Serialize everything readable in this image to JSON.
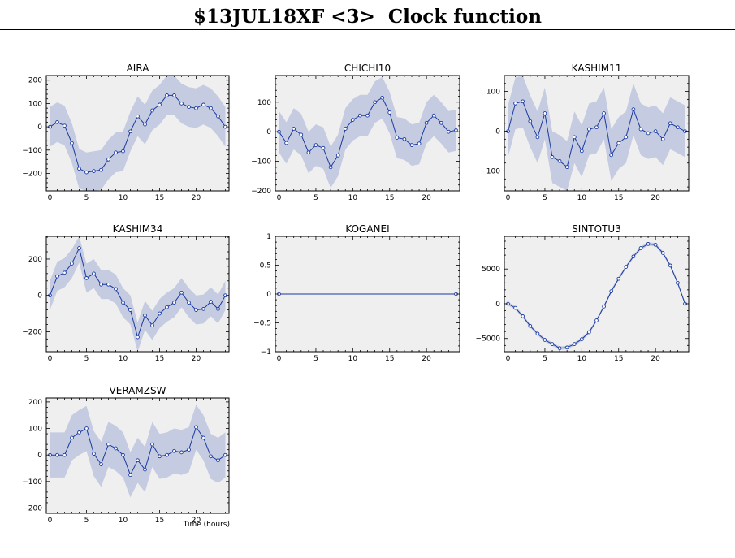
{
  "page": {
    "title": "$13JUL18XF <3>  Clock function",
    "xlabel": "Time (hours)"
  },
  "chart_data": [
    {
      "type": "line",
      "title": "AIRA",
      "xlabel": "",
      "ylabel": "",
      "xlim": [
        -0.5,
        24.5
      ],
      "ylim": [
        -275,
        220
      ],
      "xticks": [
        0,
        5,
        10,
        15,
        20
      ],
      "yticks": [
        -200,
        -100,
        0,
        100,
        200
      ],
      "x": [
        0,
        1,
        2,
        3,
        4,
        5,
        6,
        7,
        8,
        9,
        10,
        11,
        12,
        13,
        14,
        15,
        16,
        17,
        18,
        19,
        20,
        21,
        22,
        23,
        24
      ],
      "values": [
        0,
        20,
        5,
        -70,
        -180,
        -195,
        -190,
        -185,
        -140,
        -110,
        -105,
        -20,
        45,
        10,
        70,
        95,
        135,
        135,
        100,
        85,
        80,
        95,
        80,
        45,
        0
      ],
      "band": 85,
      "grid": false,
      "line_color": "#1a3aa0",
      "band_color": "#c5cbe0",
      "bg_color": "#efefef"
    },
    {
      "type": "line",
      "title": "CHICHI10",
      "xlabel": "",
      "ylabel": "",
      "xlim": [
        -0.5,
        24.5
      ],
      "ylim": [
        -200,
        190
      ],
      "xticks": [
        0,
        5,
        10,
        15,
        20
      ],
      "yticks": [
        -200,
        -100,
        0,
        100
      ],
      "x": [
        0,
        1,
        2,
        3,
        4,
        5,
        6,
        7,
        8,
        9,
        10,
        11,
        12,
        13,
        14,
        15,
        16,
        17,
        18,
        19,
        20,
        21,
        22,
        23,
        24
      ],
      "values": [
        0,
        -38,
        10,
        -10,
        -70,
        -45,
        -55,
        -120,
        -80,
        10,
        40,
        55,
        55,
        100,
        115,
        65,
        -20,
        -25,
        -45,
        -40,
        30,
        55,
        30,
        0,
        5
      ],
      "band": 70,
      "grid": false,
      "line_color": "#1a3aa0",
      "band_color": "#c5cbe0",
      "bg_color": "#efefef"
    },
    {
      "type": "line",
      "title": "KASHIM11",
      "xlabel": "",
      "ylabel": "",
      "xlim": [
        -0.5,
        24.5
      ],
      "ylim": [
        -150,
        140
      ],
      "xticks": [
        0,
        5,
        10,
        15,
        20
      ],
      "yticks": [
        -100,
        0,
        100
      ],
      "x": [
        0,
        1,
        2,
        3,
        4,
        5,
        6,
        7,
        8,
        9,
        10,
        11,
        12,
        13,
        14,
        15,
        16,
        17,
        18,
        19,
        20,
        21,
        22,
        23,
        24
      ],
      "values": [
        0,
        70,
        75,
        25,
        -15,
        45,
        -65,
        -75,
        -90,
        -15,
        -50,
        5,
        10,
        45,
        -60,
        -30,
        -15,
        55,
        5,
        -5,
        0,
        -20,
        20,
        10,
        0
      ],
      "band": 65,
      "grid": false,
      "line_color": "#1a3aa0",
      "band_color": "#c5cbe0",
      "bg_color": "#efefef"
    },
    {
      "type": "line",
      "title": "KASHIM34",
      "xlabel": "",
      "ylabel": "",
      "xlim": [
        -0.5,
        24.5
      ],
      "ylim": [
        -310,
        325
      ],
      "xticks": [
        0,
        5,
        10,
        15,
        20
      ],
      "yticks": [
        -200,
        0,
        200
      ],
      "x": [
        0,
        1,
        2,
        3,
        4,
        5,
        6,
        7,
        8,
        9,
        10,
        11,
        12,
        13,
        14,
        15,
        16,
        17,
        18,
        19,
        20,
        21,
        22,
        23,
        24
      ],
      "values": [
        0,
        105,
        125,
        175,
        260,
        95,
        120,
        60,
        60,
        35,
        -40,
        -80,
        -230,
        -110,
        -165,
        -100,
        -65,
        -40,
        15,
        -40,
        -80,
        -75,
        -35,
        -75,
        0
      ],
      "band": 80,
      "grid": false,
      "line_color": "#1a3aa0",
      "band_color": "#c5cbe0",
      "bg_color": "#efefef"
    },
    {
      "type": "line",
      "title": "KOGANEI",
      "xlabel": "",
      "ylabel": "",
      "xlim": [
        -0.5,
        24.5
      ],
      "ylim": [
        -1,
        1
      ],
      "xticks": [
        0,
        5,
        10,
        15,
        20
      ],
      "yticks": [
        -1,
        -0.5,
        0,
        0.5,
        1
      ],
      "x": [
        0,
        24
      ],
      "values": [
        0,
        0
      ],
      "band": 0,
      "grid": false,
      "line_color": "#1a3aa0",
      "band_color": "#c5cbe0",
      "bg_color": "#efefef"
    },
    {
      "type": "line",
      "title": "SINTOTU3",
      "xlabel": "",
      "ylabel": "",
      "xlim": [
        -0.5,
        24.5
      ],
      "ylim": [
        -6900,
        9700
      ],
      "xticks": [
        0,
        5,
        10,
        15,
        20
      ],
      "yticks": [
        -5000,
        0,
        5000
      ],
      "x": [
        0,
        1,
        2,
        3,
        4,
        5,
        6,
        7,
        8,
        9,
        10,
        11,
        12,
        13,
        14,
        15,
        16,
        17,
        18,
        19,
        20,
        21,
        22,
        23,
        24
      ],
      "values": [
        0,
        -600,
        -1800,
        -3200,
        -4300,
        -5200,
        -5800,
        -6400,
        -6300,
        -5800,
        -5100,
        -4100,
        -2400,
        -400,
        1800,
        3600,
        5300,
        6800,
        8000,
        8600,
        8500,
        7300,
        5500,
        3000,
        0
      ],
      "band": 250,
      "grid": false,
      "line_color": "#1a3aa0",
      "band_color": "#c5cbe0",
      "bg_color": "#efefef"
    },
    {
      "type": "line",
      "title": "VERAMZSW",
      "xlabel": "",
      "ylabel": "",
      "xlim": [
        -0.5,
        24.5
      ],
      "ylim": [
        -220,
        215
      ],
      "xticks": [
        0,
        5,
        10,
        15,
        20
      ],
      "yticks": [
        -200,
        -100,
        0,
        100,
        200
      ],
      "x": [
        0,
        1,
        2,
        3,
        4,
        5,
        6,
        7,
        8,
        9,
        10,
        11,
        12,
        13,
        14,
        15,
        16,
        17,
        18,
        19,
        20,
        21,
        22,
        23,
        24
      ],
      "values": [
        0,
        0,
        0,
        65,
        85,
        100,
        5,
        -35,
        40,
        25,
        0,
        -75,
        -20,
        -55,
        40,
        -5,
        0,
        15,
        10,
        20,
        105,
        65,
        -5,
        -20,
        0
      ],
      "band": 85,
      "grid": false,
      "line_color": "#1a3aa0",
      "band_color": "#c5cbe0",
      "bg_color": "#efefef"
    }
  ]
}
